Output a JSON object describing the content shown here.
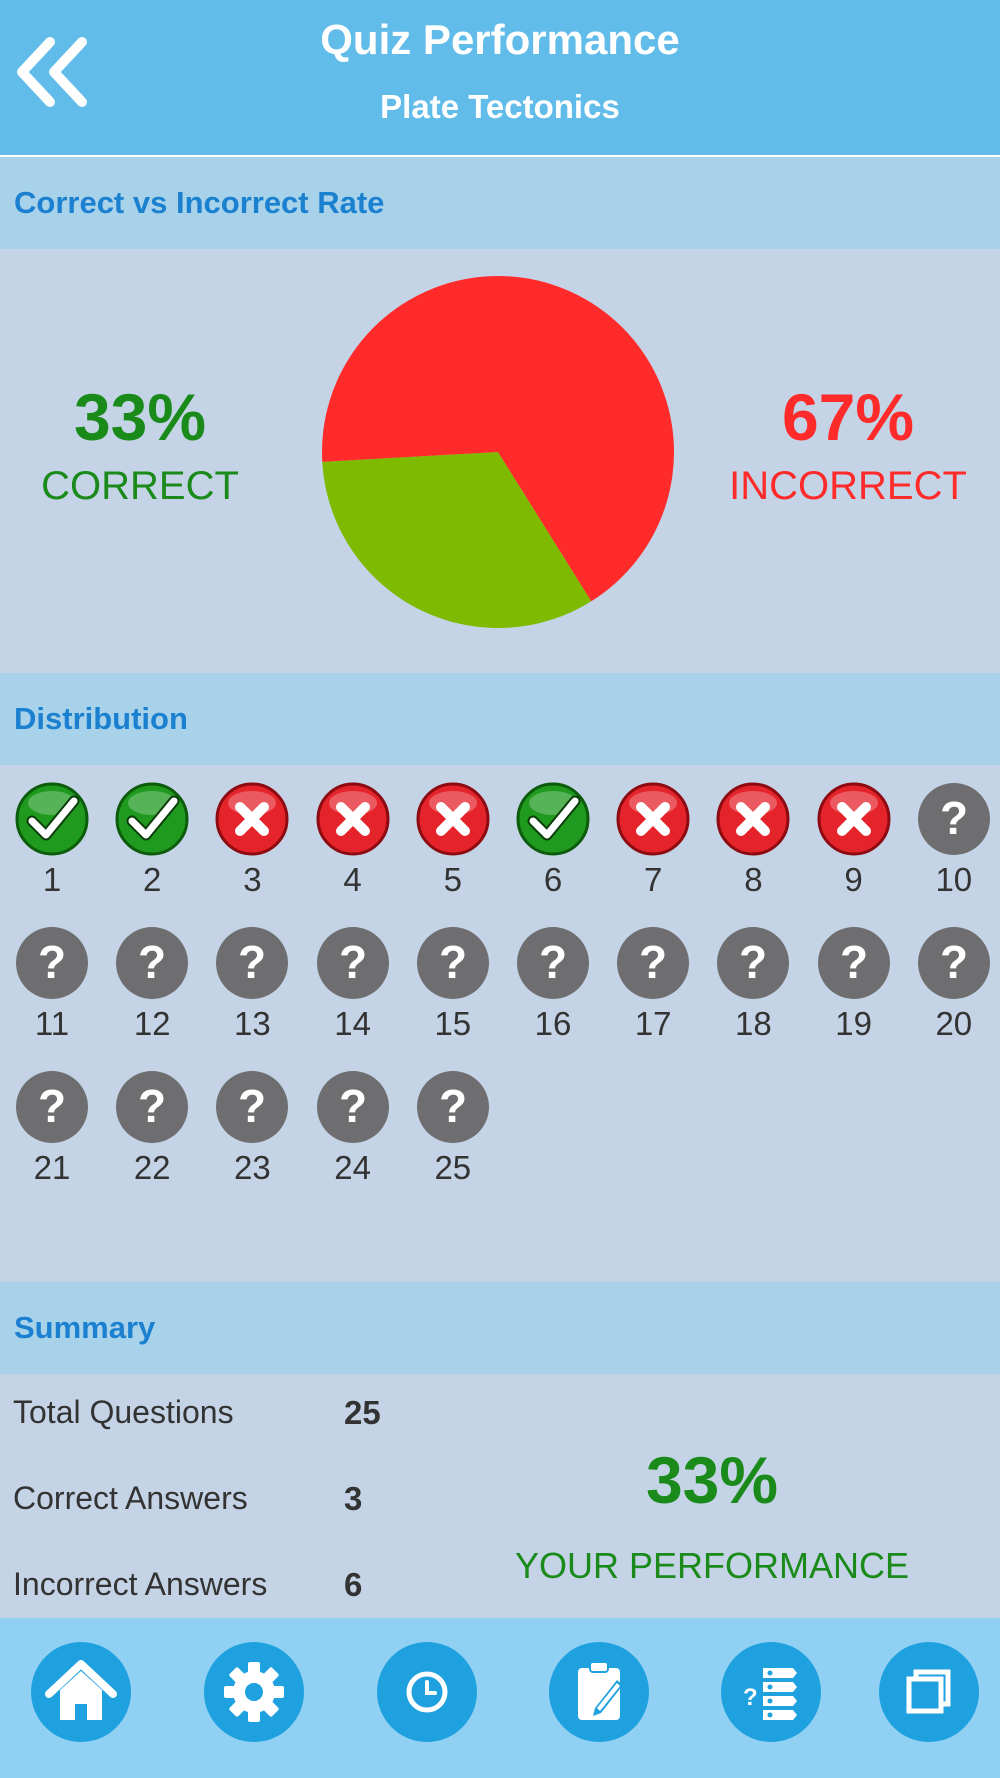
{
  "header": {
    "title": "Quiz Performance",
    "subtitle": "Plate Tectonics"
  },
  "rate_section": {
    "title": "Correct vs Incorrect Rate",
    "correct_pct": "33%",
    "correct_label": "CORRECT",
    "incorrect_pct": "67%",
    "incorrect_label": "INCORRECT"
  },
  "chart_data": {
    "type": "pie",
    "slices": [
      {
        "label": "CORRECT",
        "value": 33,
        "color": "#7ebb00"
      },
      {
        "label": "INCORRECT",
        "value": 67,
        "color": "#ff2a2a"
      }
    ]
  },
  "distribution": {
    "title": "Distribution",
    "items": [
      {
        "num": "1",
        "status": "correct"
      },
      {
        "num": "2",
        "status": "correct"
      },
      {
        "num": "3",
        "status": "incorrect"
      },
      {
        "num": "4",
        "status": "incorrect"
      },
      {
        "num": "5",
        "status": "incorrect"
      },
      {
        "num": "6",
        "status": "correct"
      },
      {
        "num": "7",
        "status": "incorrect"
      },
      {
        "num": "8",
        "status": "incorrect"
      },
      {
        "num": "9",
        "status": "incorrect"
      },
      {
        "num": "10",
        "status": "unanswered"
      },
      {
        "num": "11",
        "status": "unanswered"
      },
      {
        "num": "12",
        "status": "unanswered"
      },
      {
        "num": "13",
        "status": "unanswered"
      },
      {
        "num": "14",
        "status": "unanswered"
      },
      {
        "num": "15",
        "status": "unanswered"
      },
      {
        "num": "16",
        "status": "unanswered"
      },
      {
        "num": "17",
        "status": "unanswered"
      },
      {
        "num": "18",
        "status": "unanswered"
      },
      {
        "num": "19",
        "status": "unanswered"
      },
      {
        "num": "20",
        "status": "unanswered"
      },
      {
        "num": "21",
        "status": "unanswered"
      },
      {
        "num": "22",
        "status": "unanswered"
      },
      {
        "num": "23",
        "status": "unanswered"
      },
      {
        "num": "24",
        "status": "unanswered"
      },
      {
        "num": "25",
        "status": "unanswered"
      }
    ]
  },
  "summary": {
    "title": "Summary",
    "total_label": "Total Questions",
    "total_value": "25",
    "correct_label": "Correct Answers",
    "correct_value": "3",
    "incorrect_label": "Incorrect Answers",
    "incorrect_value": "6",
    "performance_pct": "33%",
    "performance_label": "YOUR PERFORMANCE"
  },
  "nav": {
    "icons": [
      "home-icon",
      "settings-icon",
      "clock-icon",
      "clipboard-edit-icon",
      "quiz-list-icon",
      "copy-icon"
    ]
  },
  "colors": {
    "header": "#62bcea",
    "section_bar": "#a7d2ea",
    "section_text": "#1b80cf",
    "panel": "#c4d4e6",
    "correct": "#1a8a1a",
    "incorrect": "#ff2a2a",
    "nav_bar": "#8fd0f3",
    "nav_button": "#1fa1e0"
  }
}
